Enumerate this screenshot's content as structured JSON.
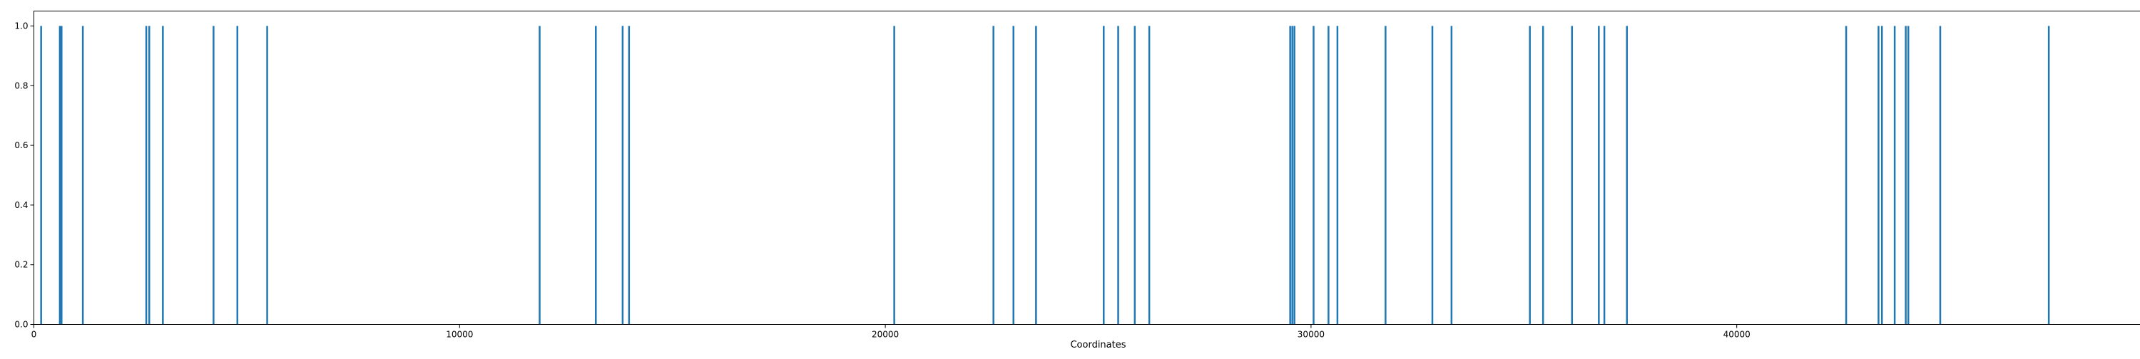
{
  "chart_data": {
    "type": "bar",
    "title": "",
    "xlabel": "Coordinates",
    "ylabel": "",
    "xlim": [
      0,
      50000
    ],
    "ylim": [
      0,
      1.05
    ],
    "grid": false,
    "legend": "none",
    "xticks": [
      0,
      10000,
      20000,
      30000,
      40000,
      50000
    ],
    "xtick_labels": [
      "0",
      "10000",
      "20000",
      "30000",
      "40000",
      "50000"
    ],
    "yticks": [
      0.0,
      0.2,
      0.4,
      0.6,
      0.8,
      1.0
    ],
    "ytick_labels": [
      "0.0",
      "0.2",
      "0.4",
      "0.6",
      "0.8",
      "1.0"
    ],
    "series": [
      {
        "x": [
          170,
          610,
          650,
          1150,
          2640,
          2710,
          3030,
          4220,
          4780,
          5480,
          11880,
          13200,
          13830,
          13980,
          20210,
          22540,
          23010,
          23540,
          25130,
          25470,
          25860,
          26200,
          29510,
          29560,
          29610,
          30060,
          30410,
          30620,
          31750,
          32850,
          33300,
          35140,
          35450,
          36130,
          36760,
          36890,
          37420,
          42570,
          43330,
          43410,
          43710,
          43970,
          44030,
          44780,
          47330
        ],
        "values": [
          1,
          1,
          1,
          1,
          1,
          1,
          1,
          1,
          1,
          1,
          1,
          1,
          1,
          1,
          1,
          1,
          1,
          1,
          1,
          1,
          1,
          1,
          1,
          1,
          1,
          1,
          1,
          1,
          1,
          1,
          1,
          1,
          1,
          1,
          1,
          1,
          1,
          1,
          1,
          1,
          1,
          1,
          1,
          1,
          1
        ]
      }
    ],
    "colors": {
      "bar": "#1f77b4",
      "axes": "#000000",
      "background": "#ffffff"
    }
  }
}
